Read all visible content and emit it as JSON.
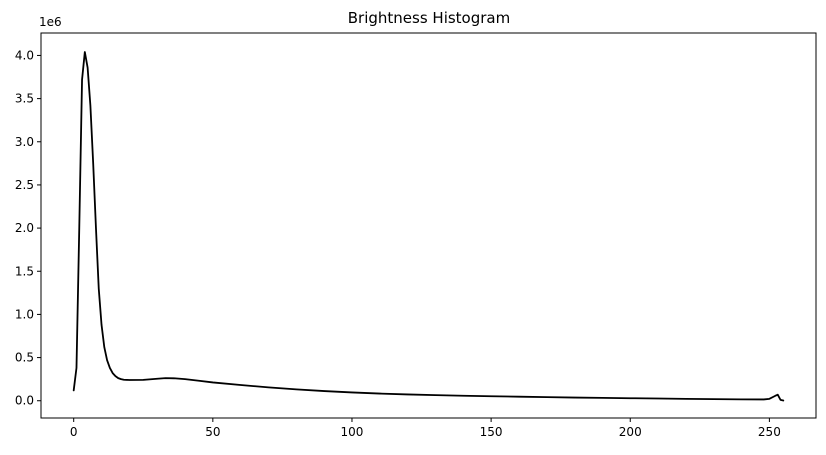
{
  "chart_data": {
    "type": "line",
    "title": "Brightness Histogram",
    "xlabel": "",
    "ylabel": "",
    "xlim": [
      -11.75,
      266.75
    ],
    "ylim": [
      -0.2,
      4.26
    ],
    "y_offset_label": "1e6",
    "grid": false,
    "legend": "none",
    "colors": {
      "line": "#000000",
      "axes": "#000000",
      "background": "#ffffff"
    },
    "x_ticks": [
      0,
      50,
      100,
      150,
      200,
      250
    ],
    "x_tick_labels": [
      "0",
      "50",
      "100",
      "150",
      "200",
      "250"
    ],
    "y_ticks": [
      0,
      0.5,
      1.0,
      1.5,
      2.0,
      2.5,
      3.0,
      3.5,
      4.0
    ],
    "y_tick_labels": [
      "0.0",
      "0.5",
      "1.0",
      "1.5",
      "2.0",
      "2.5",
      "3.0",
      "3.5",
      "4.0"
    ],
    "series": [
      {
        "points": [
          [
            0,
            0.12
          ],
          [
            1,
            0.38
          ],
          [
            2,
            2.0
          ],
          [
            3,
            3.72
          ],
          [
            4,
            4.04
          ],
          [
            5,
            3.86
          ],
          [
            6,
            3.42
          ],
          [
            7,
            2.75
          ],
          [
            8,
            2.0
          ],
          [
            9,
            1.3
          ],
          [
            10,
            0.88
          ],
          [
            11,
            0.62
          ],
          [
            12,
            0.47
          ],
          [
            13,
            0.38
          ],
          [
            14,
            0.32
          ],
          [
            15,
            0.285
          ],
          [
            16,
            0.262
          ],
          [
            17,
            0.25
          ],
          [
            18,
            0.243
          ],
          [
            20,
            0.24
          ],
          [
            25,
            0.242
          ],
          [
            30,
            0.255
          ],
          [
            33,
            0.262
          ],
          [
            36,
            0.26
          ],
          [
            40,
            0.25
          ],
          [
            45,
            0.232
          ],
          [
            50,
            0.212
          ],
          [
            60,
            0.182
          ],
          [
            70,
            0.155
          ],
          [
            80,
            0.132
          ],
          [
            90,
            0.112
          ],
          [
            100,
            0.096
          ],
          [
            110,
            0.083
          ],
          [
            120,
            0.073
          ],
          [
            130,
            0.065
          ],
          [
            140,
            0.058
          ],
          [
            150,
            0.052
          ],
          [
            160,
            0.047
          ],
          [
            170,
            0.042
          ],
          [
            180,
            0.037
          ],
          [
            190,
            0.033
          ],
          [
            200,
            0.029
          ],
          [
            210,
            0.026
          ],
          [
            220,
            0.022
          ],
          [
            230,
            0.019
          ],
          [
            240,
            0.016
          ],
          [
            248,
            0.015
          ],
          [
            250,
            0.022
          ],
          [
            252,
            0.055
          ],
          [
            253,
            0.07
          ],
          [
            254,
            0.01
          ],
          [
            255,
            0.002
          ]
        ]
      }
    ]
  }
}
